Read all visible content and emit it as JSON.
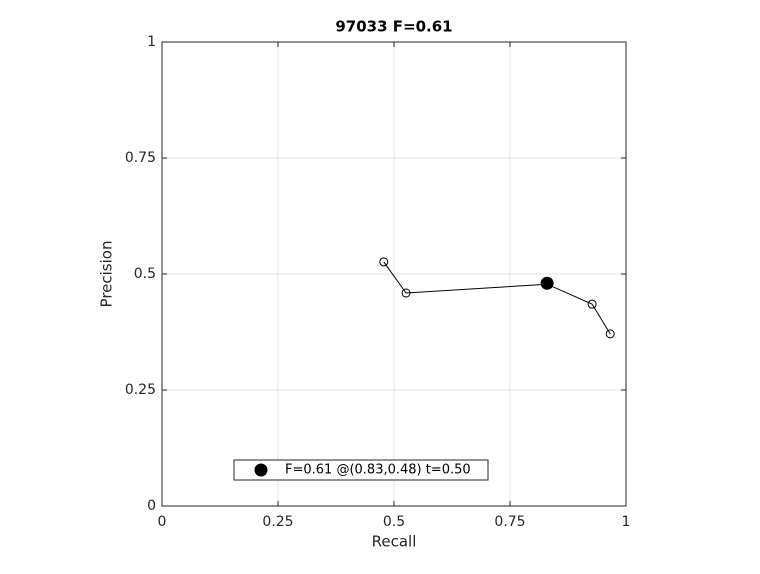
{
  "chart_data": {
    "type": "line",
    "title": "97033 F=0.61",
    "xlabel": "Recall",
    "ylabel": "Precision",
    "xlim": [
      0,
      1
    ],
    "ylim": [
      0,
      1
    ],
    "xticks": [
      0,
      0.25,
      0.5,
      0.75,
      1
    ],
    "yticks": [
      0,
      0.25,
      0.5,
      0.75,
      1
    ],
    "grid": true,
    "legend": "south",
    "series": [
      {
        "color": "#000000",
        "marker": "open",
        "x": [
          0.478,
          0.526,
          0.83,
          0.927,
          0.966
        ],
        "values": [
          0.526,
          0.459,
          0.478,
          0.435,
          0.371
        ]
      },
      {
        "name": "F=0.61 @(0.83,0.48) t=0.50",
        "color": "#000000",
        "marker": "filled",
        "x": [
          0.83
        ],
        "values": [
          0.48
        ]
      }
    ]
  }
}
